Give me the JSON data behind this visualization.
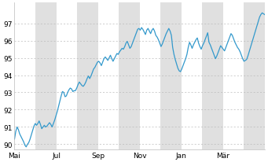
{
  "y_min": 89.7,
  "y_max": 98.2,
  "yticks": [
    90,
    91,
    92,
    93,
    94,
    95,
    96,
    97
  ],
  "x_labels": [
    "Mai",
    "Jul",
    "Sep",
    "Nov",
    "Jan",
    "Mär"
  ],
  "line_color": "#3399cc",
  "bg_color": "#ffffff",
  "plot_bg": "#ffffff",
  "band_color": "#e0e0e0",
  "grid_color": "#bbbbbb",
  "series": [
    90.3,
    90.75,
    91.0,
    90.85,
    90.6,
    90.45,
    90.3,
    90.15,
    89.95,
    89.85,
    90.0,
    90.1,
    90.3,
    90.55,
    90.8,
    91.05,
    91.2,
    91.1,
    91.2,
    91.35,
    91.15,
    90.9,
    91.0,
    91.1,
    91.0,
    91.05,
    91.15,
    91.25,
    91.15,
    91.0,
    91.2,
    91.4,
    91.65,
    91.9,
    92.2,
    92.5,
    92.8,
    93.05,
    93.0,
    92.75,
    92.8,
    93.0,
    93.15,
    93.25,
    93.2,
    93.05,
    93.1,
    93.1,
    93.25,
    93.45,
    93.6,
    93.5,
    93.4,
    93.35,
    93.45,
    93.6,
    93.8,
    93.95,
    93.8,
    93.95,
    94.15,
    94.35,
    94.45,
    94.6,
    94.75,
    94.8,
    94.7,
    94.55,
    94.75,
    94.95,
    95.05,
    94.95,
    94.85,
    95.0,
    95.15,
    94.95,
    94.8,
    94.95,
    95.1,
    95.25,
    95.2,
    95.35,
    95.45,
    95.55,
    95.5,
    95.65,
    95.85,
    95.95,
    95.75,
    95.55,
    95.65,
    95.85,
    96.05,
    96.25,
    96.45,
    96.65,
    96.7,
    96.6,
    96.75,
    96.65,
    96.5,
    96.35,
    96.6,
    96.7,
    96.55,
    96.4,
    96.6,
    96.7,
    96.55,
    96.3,
    96.2,
    96.05,
    95.85,
    95.65,
    95.8,
    96.0,
    96.2,
    96.4,
    96.55,
    96.7,
    96.55,
    96.3,
    95.6,
    95.2,
    94.9,
    94.65,
    94.4,
    94.25,
    94.2,
    94.35,
    94.55,
    94.75,
    94.95,
    95.2,
    95.6,
    95.9,
    95.75,
    95.55,
    95.75,
    95.9,
    96.05,
    96.15,
    95.85,
    95.65,
    95.5,
    95.7,
    95.85,
    96.05,
    96.25,
    96.45,
    95.9,
    95.75,
    95.55,
    95.35,
    95.15,
    94.95,
    95.1,
    95.3,
    95.5,
    95.7,
    95.6,
    95.5,
    95.4,
    95.6,
    95.8,
    96.0,
    96.2,
    96.4,
    96.3,
    96.1,
    95.9,
    95.75,
    95.6,
    95.5,
    95.35,
    95.15,
    94.95,
    94.8,
    94.85,
    94.9,
    95.1,
    95.35,
    95.6,
    95.85,
    96.1,
    96.35,
    96.6,
    96.85,
    97.1,
    97.35,
    97.5,
    97.6,
    97.55,
    97.5
  ]
}
